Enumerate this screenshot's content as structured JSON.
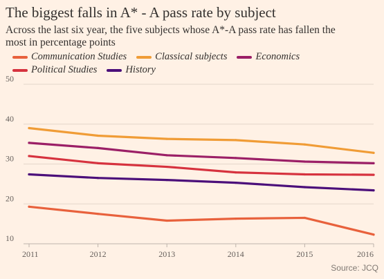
{
  "title": "The biggest falls in A* - A pass rate by subject",
  "subtitle": "Across the last six year, the five subjects whose A*-A pass rate has fallen the most in percentage points",
  "source": "Source: JCQ",
  "chart_data": {
    "type": "line",
    "x": [
      2011,
      2012,
      2013,
      2014,
      2015,
      2016
    ],
    "x_tick_labels": [
      "2011",
      "2012",
      "2013",
      "2014",
      "2015",
      "2016"
    ],
    "y_ticks": [
      10,
      20,
      30,
      40,
      50
    ],
    "ylim": [
      10,
      50
    ],
    "grid": true,
    "legend_position": "top-left",
    "series": [
      {
        "name": "Communication Studies",
        "color": "#e8613c",
        "values": [
          19.3,
          17.5,
          15.8,
          16.3,
          16.5,
          12.3
        ]
      },
      {
        "name": "Classical subjects",
        "color": "#f09c36",
        "values": [
          39.0,
          37.1,
          36.3,
          36.0,
          34.9,
          32.8
        ]
      },
      {
        "name": "Economics",
        "color": "#9b1f66",
        "values": [
          35.3,
          34.0,
          32.2,
          31.5,
          30.6,
          30.2
        ]
      },
      {
        "name": "Political Studies",
        "color": "#d6323e",
        "values": [
          32.0,
          30.2,
          29.3,
          27.9,
          27.4,
          27.3
        ]
      },
      {
        "name": "History",
        "color": "#4b0f7a",
        "values": [
          27.4,
          26.5,
          26.0,
          25.3,
          24.2,
          23.4
        ]
      }
    ]
  }
}
